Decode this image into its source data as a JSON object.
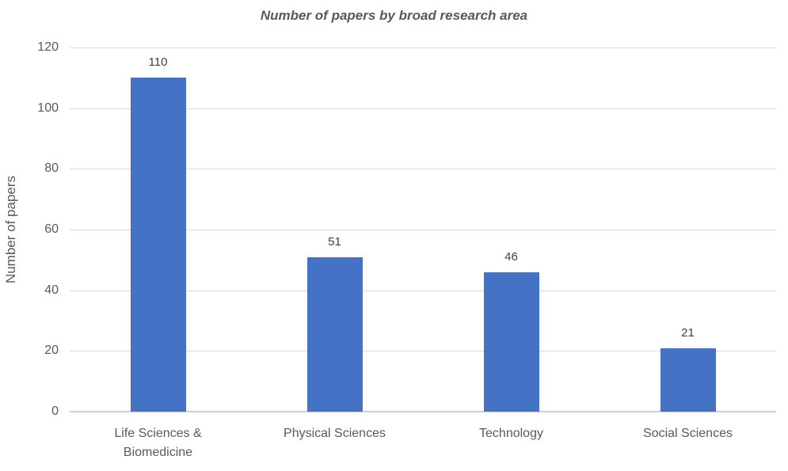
{
  "chart_data": {
    "type": "bar",
    "title": "Number of papers by broad research area",
    "categories": [
      "Life Sciences & Biomedicine",
      "Physical Sciences",
      "Technology",
      "Social Sciences"
    ],
    "values": [
      110,
      51,
      46,
      21
    ],
    "xlabel": "",
    "ylabel": "Number of papers",
    "ylim": [
      0,
      120
    ],
    "yticks": [
      0,
      20,
      40,
      60,
      80,
      100,
      120
    ],
    "grid": true,
    "legend": "none",
    "data_labels": [
      110,
      51,
      46,
      21
    ]
  },
  "colors": {
    "bar": "#4472c4",
    "grid": "#d9d9d9",
    "axis_line": "#d0cece",
    "title_text": "#595959",
    "tick_text": "#595959",
    "data_label_text": "#404040"
  }
}
